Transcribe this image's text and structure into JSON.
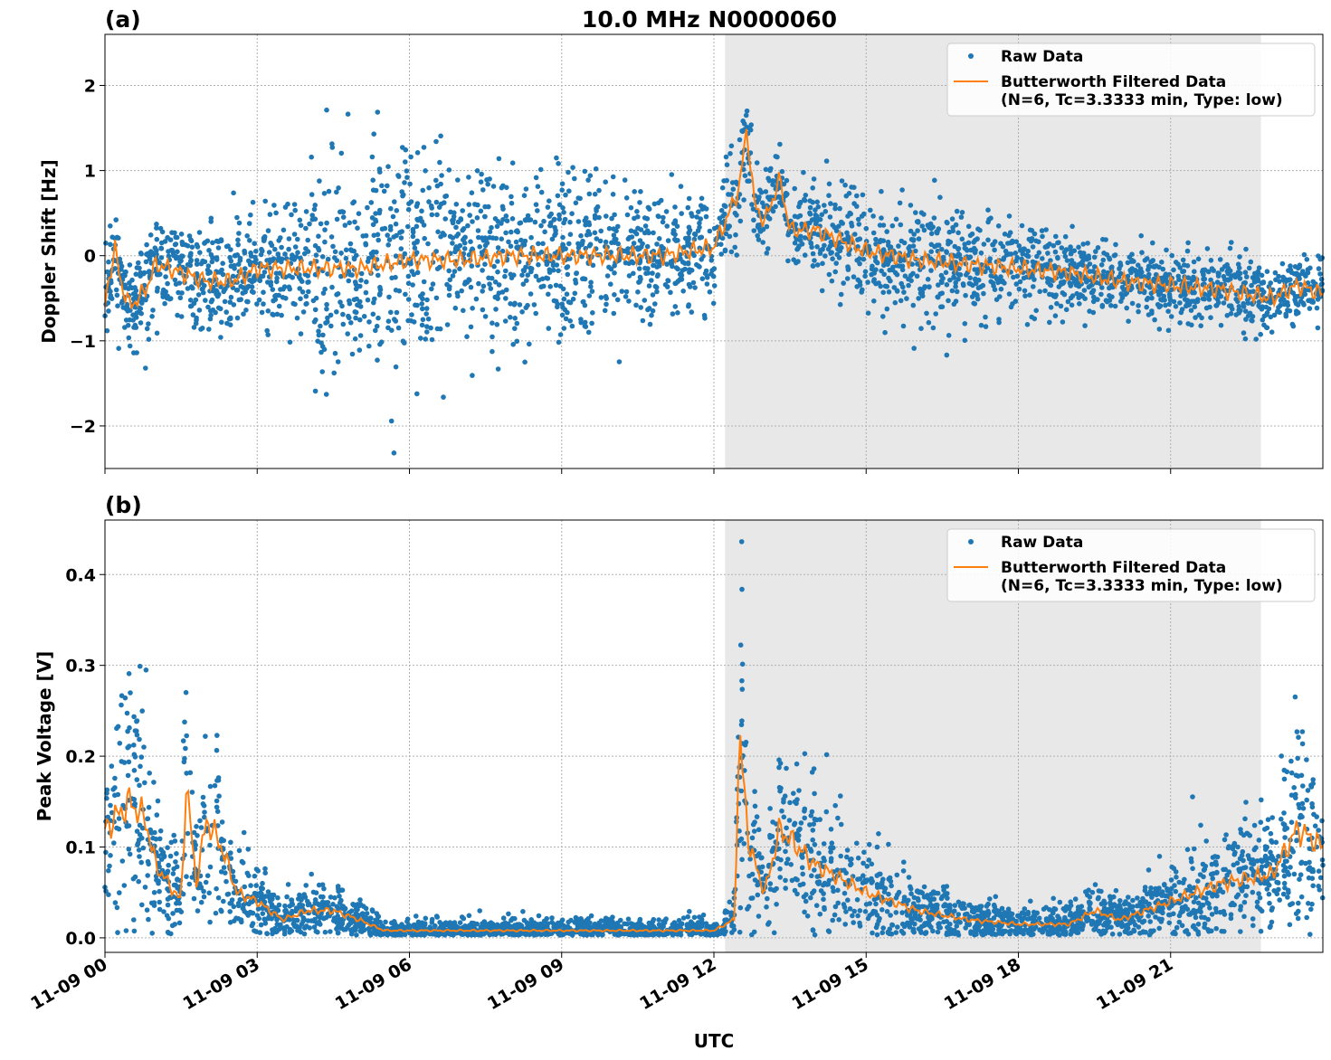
{
  "chart_data": [
    {
      "type": "scatter",
      "panel_label": "(a)",
      "title": "10.0 MHz N0000060",
      "xlabel": "",
      "ylabel": "Doppler Shift [Hz]",
      "xlim_hours": [
        0,
        24
      ],
      "ylim": [
        -2.5,
        2.6
      ],
      "yticks": [
        -2,
        -1,
        0,
        1,
        2
      ],
      "ytick_labels": [
        "−2",
        "−1",
        "0",
        "1",
        "2"
      ],
      "grid": true,
      "shaded_region_hours": [
        12.22,
        22.78
      ],
      "legend": {
        "placement": "top-right",
        "entries": [
          "Raw Data",
          "Butterworth Filtered Data",
          "(N=6, Tc=3.3333 min, Type: low)"
        ]
      },
      "series": [
        {
          "name": "Butterworth Filtered Data",
          "color": "#ff7f0e",
          "x": [
            0,
            0.1,
            0.2,
            0.3,
            0.5,
            0.8,
            1,
            1.5,
            2,
            2.5,
            3,
            4,
            5,
            5.5,
            6,
            7,
            8,
            9,
            10,
            11,
            12,
            12.3,
            12.5,
            12.65,
            12.8,
            13,
            13.3,
            13.5,
            14,
            15,
            16,
            17,
            18,
            19,
            20,
            21,
            22,
            23,
            23.5,
            24
          ],
          "y": [
            -0.6,
            -0.2,
            0.1,
            -0.3,
            -0.6,
            -0.4,
            -0.1,
            -0.2,
            -0.3,
            -0.3,
            -0.15,
            -0.15,
            -0.15,
            -0.1,
            -0.05,
            -0.05,
            0,
            0,
            0,
            0,
            0.1,
            0.5,
            0.8,
            1.5,
            0.6,
            0.4,
            0.9,
            0.3,
            0.3,
            0.05,
            -0.05,
            -0.1,
            -0.15,
            -0.2,
            -0.3,
            -0.35,
            -0.4,
            -0.5,
            -0.35,
            -0.45
          ]
        },
        {
          "name": "Raw Data",
          "color": "#1f77b4",
          "spread_x": [
            0,
            3,
            5,
            12.2,
            13.5,
            16,
            20,
            24
          ],
          "spread_y": [
            0.25,
            0.35,
            0.7,
            0.3,
            0.2,
            0.35,
            0.2,
            0.2
          ]
        }
      ]
    },
    {
      "type": "scatter",
      "panel_label": "(b)",
      "xlabel": "UTC",
      "ylabel": "Peak Voltage [V]",
      "xlim_hours": [
        0,
        24
      ],
      "ylim": [
        -0.016,
        0.46
      ],
      "yticks": [
        0,
        0.1,
        0.2,
        0.3,
        0.4
      ],
      "ytick_labels": [
        "0.0",
        "0.1",
        "0.2",
        "0.3",
        "0.4"
      ],
      "xticks_hours": [
        0,
        3,
        6,
        9,
        12,
        15,
        18,
        21
      ],
      "xtick_labels": [
        "11-09 00",
        "11-09 03",
        "11-09 06",
        "11-09 09",
        "11-09 12",
        "11-09 15",
        "11-09 18",
        "11-09 21"
      ],
      "grid": true,
      "shaded_region_hours": [
        12.22,
        22.78
      ],
      "legend": {
        "placement": "top-right",
        "entries": [
          "Raw Data",
          "Butterworth Filtered Data",
          "(N=6, Tc=3.3333 min, Type: low)"
        ]
      },
      "series": [
        {
          "name": "Butterworth Filtered Data",
          "color": "#ff7f0e",
          "x": [
            0,
            0.5,
            0.8,
            1,
            1.5,
            1.6,
            1.8,
            2,
            2.3,
            2.6,
            3,
            3.5,
            4,
            4.5,
            5,
            5.5,
            6,
            9,
            12,
            12.4,
            12.5,
            12.7,
            13,
            13.3,
            14,
            15,
            16,
            17,
            18,
            19,
            19.5,
            20,
            21,
            22,
            23,
            23.5,
            24
          ],
          "y": [
            0.12,
            0.15,
            0.13,
            0.08,
            0.04,
            0.17,
            0.06,
            0.13,
            0.1,
            0.05,
            0.04,
            0.02,
            0.03,
            0.03,
            0.02,
            0.008,
            0.008,
            0.008,
            0.008,
            0.02,
            0.22,
            0.1,
            0.05,
            0.12,
            0.08,
            0.05,
            0.03,
            0.02,
            0.015,
            0.015,
            0.03,
            0.02,
            0.04,
            0.06,
            0.07,
            0.12,
            0.1
          ]
        },
        {
          "name": "Raw Data",
          "color": "#1f77b4",
          "relative_spread": 0.45
        }
      ]
    }
  ]
}
